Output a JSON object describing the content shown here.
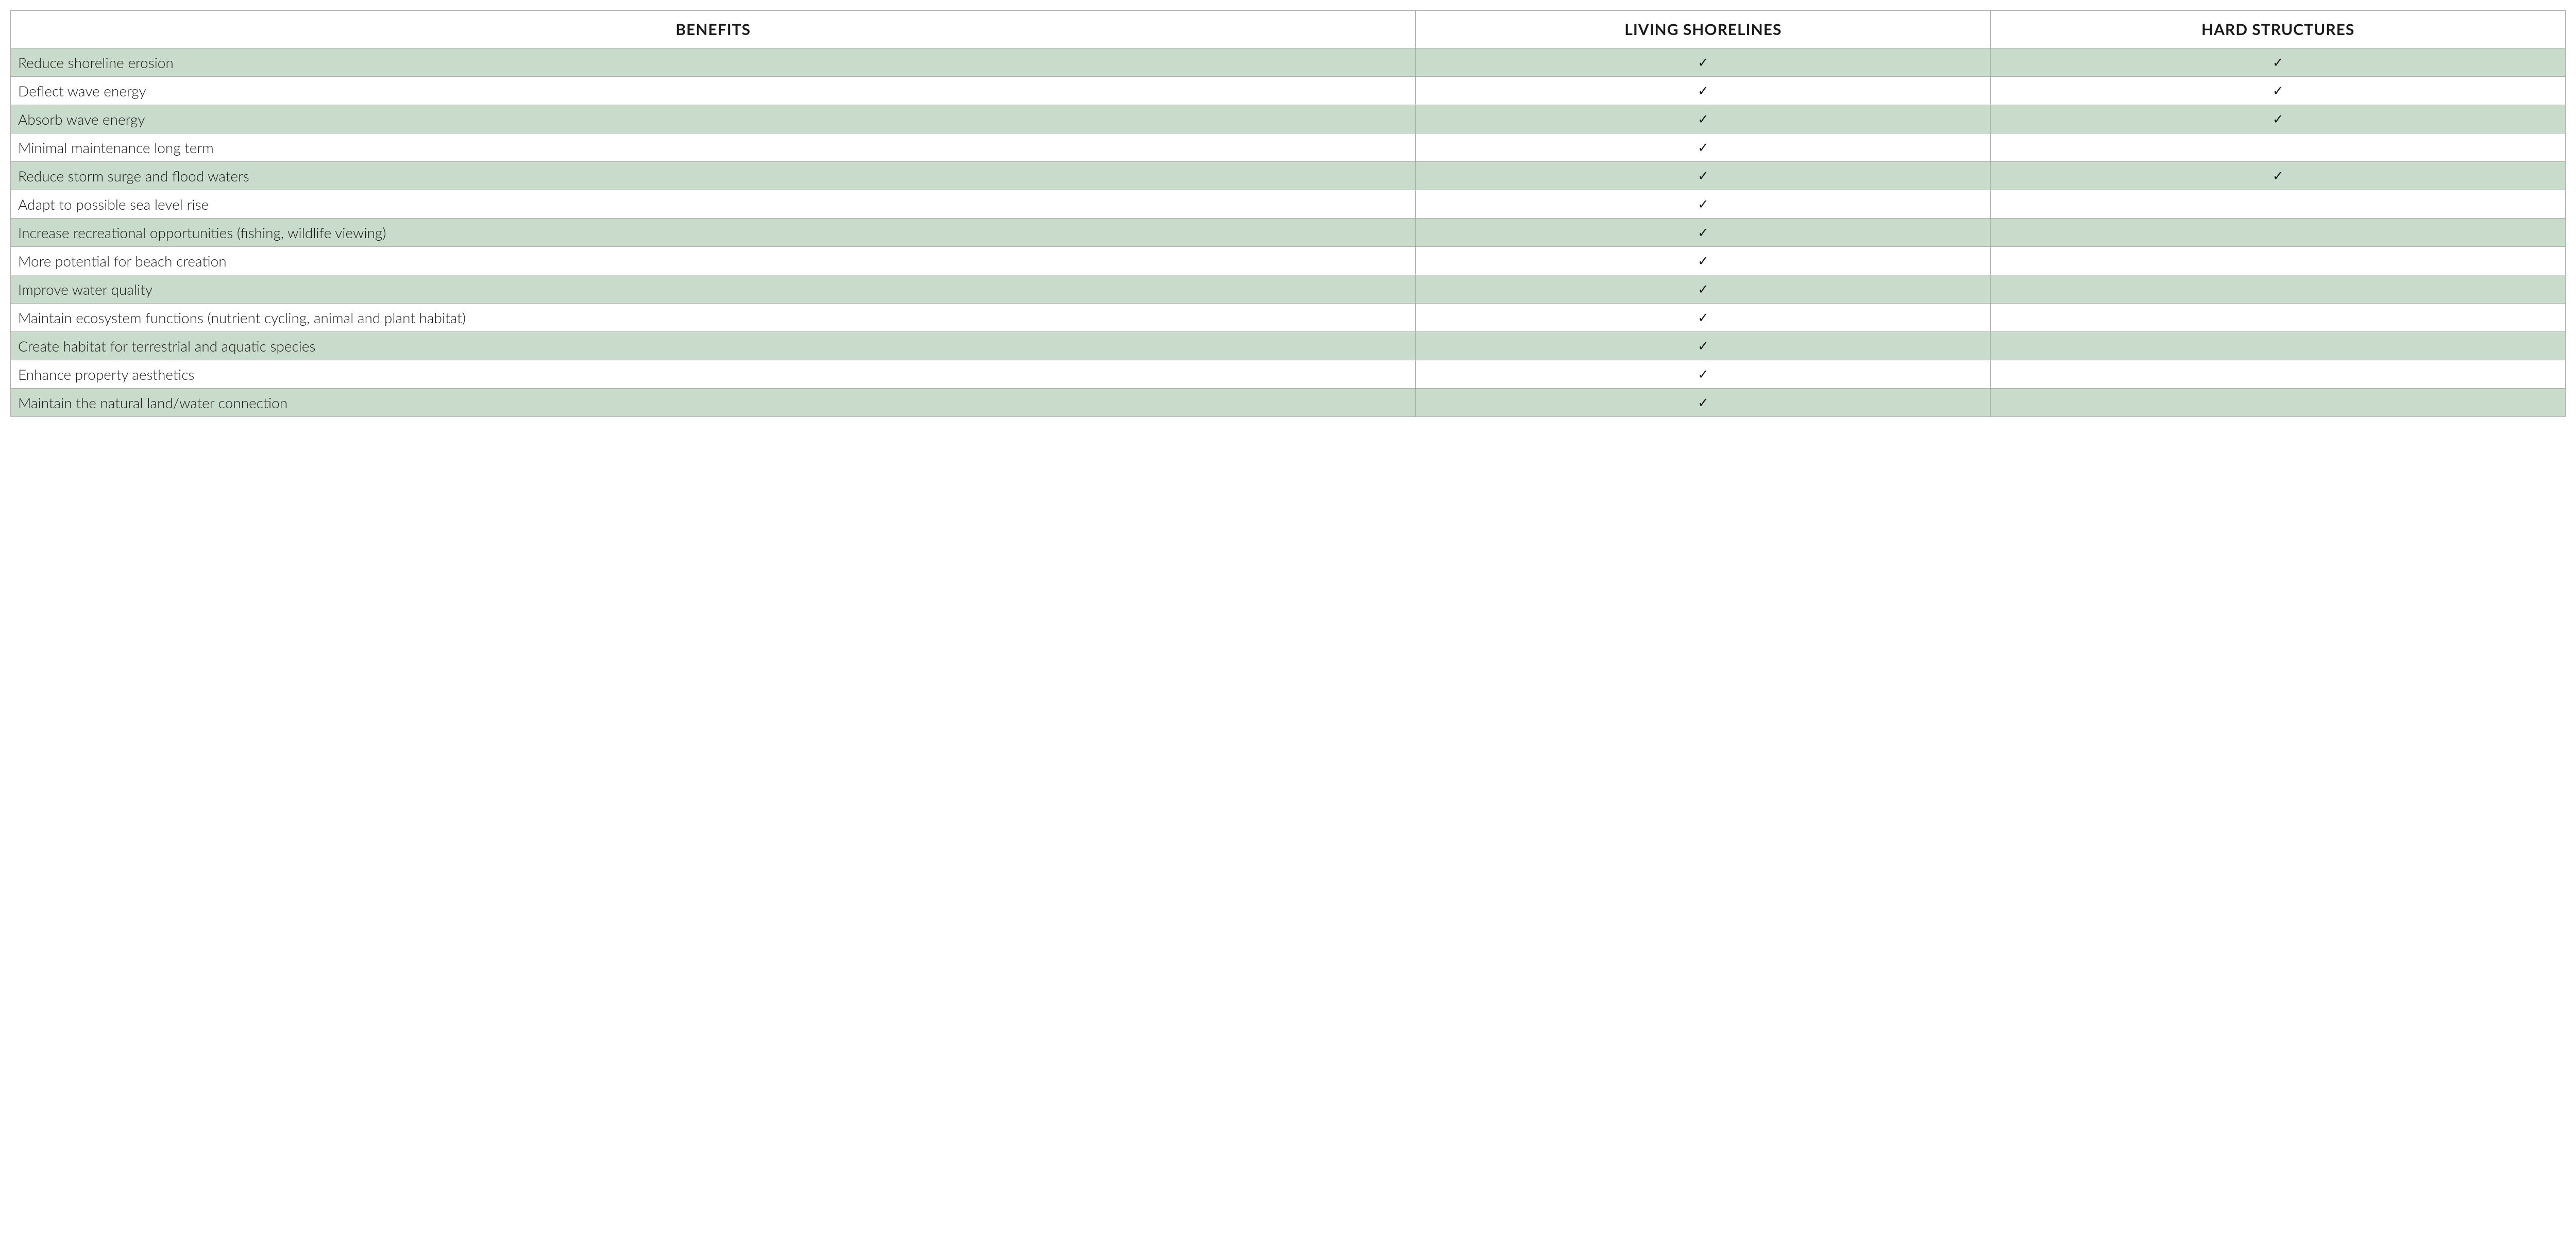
{
  "table": {
    "type": "table",
    "columns": [
      {
        "label": "BENEFITS",
        "align": "center"
      },
      {
        "label": "LIVING SHORELINES",
        "align": "center"
      },
      {
        "label": "HARD STRUCTURES",
        "align": "center"
      }
    ],
    "check_glyph": "✓",
    "rows": [
      {
        "benefit": "Reduce shoreline erosion",
        "living": true,
        "hard": true
      },
      {
        "benefit": "Deflect wave energy",
        "living": true,
        "hard": true
      },
      {
        "benefit": "Absorb wave energy",
        "living": true,
        "hard": true
      },
      {
        "benefit": "Minimal maintenance long term",
        "living": true,
        "hard": false
      },
      {
        "benefit": "Reduce storm surge and flood waters",
        "living": true,
        "hard": true
      },
      {
        "benefit": "Adapt to possible sea level rise",
        "living": true,
        "hard": false
      },
      {
        "benefit": "Increase recreational opportunities (fishing, wildlife viewing)",
        "living": true,
        "hard": false
      },
      {
        "benefit": "More potential for beach creation",
        "living": true,
        "hard": false
      },
      {
        "benefit": "Improve water quality",
        "living": true,
        "hard": false
      },
      {
        "benefit": "Maintain ecosystem functions (nutrient cycling, animal and plant habitat)",
        "living": true,
        "hard": false
      },
      {
        "benefit": "Create habitat for terrestrial and aquatic species",
        "living": true,
        "hard": false
      },
      {
        "benefit": "Enhance property aesthetics",
        "living": true,
        "hard": false
      },
      {
        "benefit": "Maintain the natural land/water connection",
        "living": true,
        "hard": false
      }
    ],
    "styling": {
      "header_bg": "#ffffff",
      "row_odd_bg": "#c9dbca",
      "row_even_bg": "#ffffff",
      "border_color": "#b0b0b0",
      "text_color": "#1a1a1a",
      "header_fontsize": 30,
      "cell_fontsize": 28,
      "header_font_weight": 700,
      "cell_font_weight": 300,
      "col_widths_pct": [
        55,
        22.5,
        22.5
      ]
    }
  }
}
